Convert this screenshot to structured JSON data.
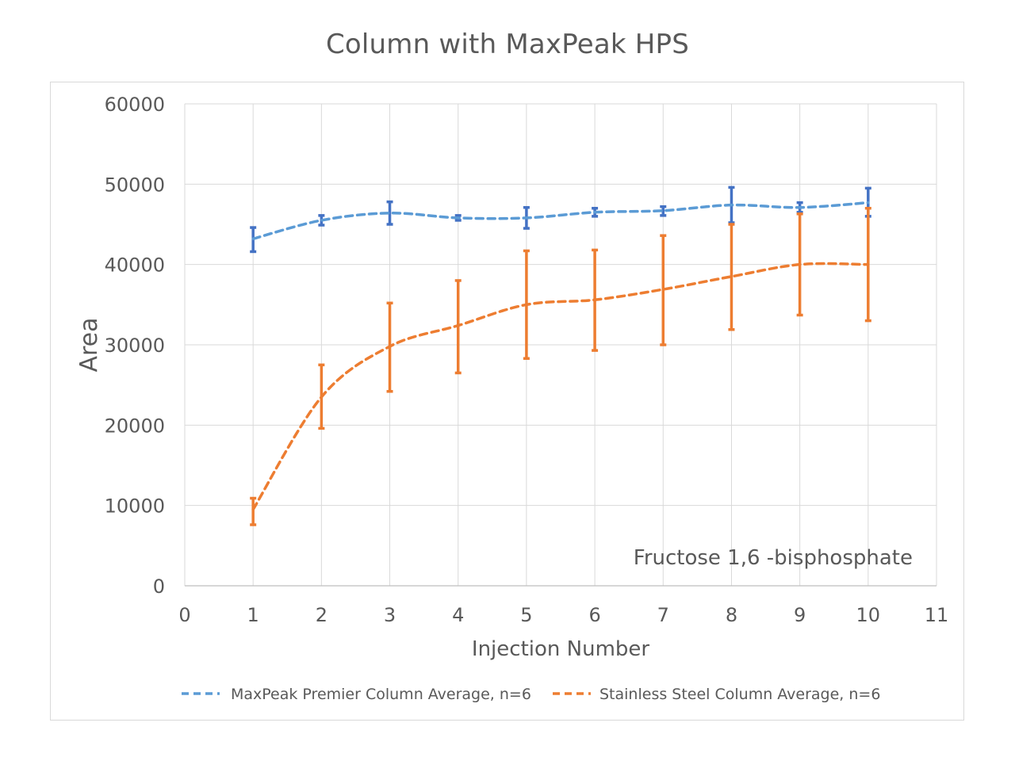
{
  "chart_data": {
    "type": "line",
    "title": "Column with MaxPeak HPS",
    "xlabel": "Injection Number",
    "ylabel": "Area",
    "xlim": [
      0,
      11
    ],
    "ylim": [
      0,
      60000
    ],
    "x_ticks": [
      0,
      1,
      2,
      3,
      4,
      5,
      6,
      7,
      8,
      9,
      10,
      11
    ],
    "y_ticks": [
      0,
      10000,
      20000,
      30000,
      40000,
      50000,
      60000
    ],
    "grid": true,
    "legend_position": "bottom",
    "annotation": "Fructose 1,6 -bisphosphate",
    "x": [
      1,
      2,
      3,
      4,
      5,
      6,
      7,
      8,
      9,
      10
    ],
    "series": [
      {
        "name": "MaxPeak Premier Column Average, n=6",
        "color": "#5b9bd5",
        "error_color": "#4472c4",
        "values": [
          43200,
          45500,
          46400,
          45800,
          45800,
          46500,
          46700,
          47400,
          47100,
          47700
        ],
        "error_low": [
          41600,
          44900,
          45000,
          45500,
          44500,
          46000,
          46100,
          45200,
          46500,
          46000
        ],
        "error_high": [
          44600,
          46100,
          47800,
          46100,
          47100,
          47000,
          47200,
          49600,
          47700,
          49500
        ]
      },
      {
        "name": "Stainless Steel Column Average, n=6",
        "color": "#ed7d31",
        "error_color": "#ed7d31",
        "values": [
          9500,
          23500,
          29800,
          32400,
          35000,
          35600,
          36900,
          38500,
          40000,
          40000
        ],
        "error_low": [
          7600,
          19600,
          24200,
          26500,
          28300,
          29300,
          30000,
          31900,
          33700,
          33000
        ],
        "error_high": [
          10900,
          27500,
          35200,
          38000,
          41700,
          41800,
          43600,
          45000,
          46300,
          47000
        ]
      }
    ]
  }
}
